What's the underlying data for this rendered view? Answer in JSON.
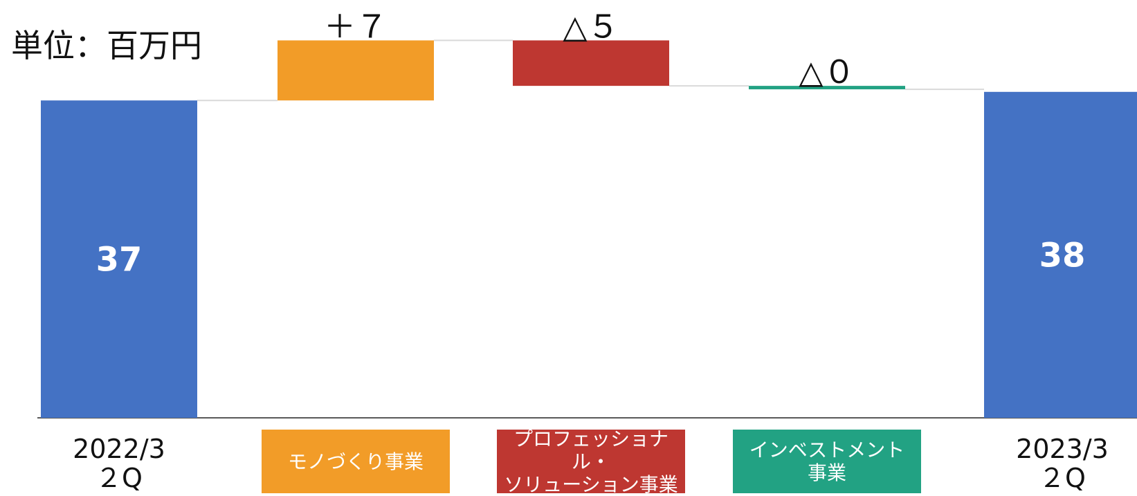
{
  "unit_label": "単位：百万円",
  "colors": {
    "total": "#4472C4",
    "monozukuri": "#F29C28",
    "professional": "#BE3731",
    "investment": "#22A283",
    "connector": "#D9D9D9",
    "axis": "#222222"
  },
  "chart_data": {
    "type": "bar",
    "subtype": "waterfall",
    "unit": "単位：百万円",
    "categories": [
      "2022/3\n２Q",
      "モノづくり事業",
      "プロフェッショナル・\nソリューション事業",
      "インベストメント\n事業",
      "2023/3\n２Q"
    ],
    "steps": [
      {
        "kind": "total",
        "value": 37,
        "label": "37",
        "category_label": "2022/3\n２Q",
        "color": "#4472C4"
      },
      {
        "kind": "delta",
        "value": 7,
        "label": "＋７",
        "category_label": "モノづくり事業",
        "color": "#F29C28"
      },
      {
        "kind": "delta",
        "value": -5.3,
        "label": "△５",
        "category_label": "プロフェッショナル・\nソリューション事業",
        "color": "#BE3731"
      },
      {
        "kind": "delta",
        "value": -0.4,
        "label": "△０",
        "category_label": "インベストメント\n事業",
        "color": "#22A283"
      },
      {
        "kind": "total",
        "value": 38,
        "label": "38",
        "category_label": "2023/3\n２Q",
        "color": "#4472C4"
      }
    ],
    "ylim": [
      0,
      45
    ],
    "grid": false,
    "legend": "none"
  }
}
